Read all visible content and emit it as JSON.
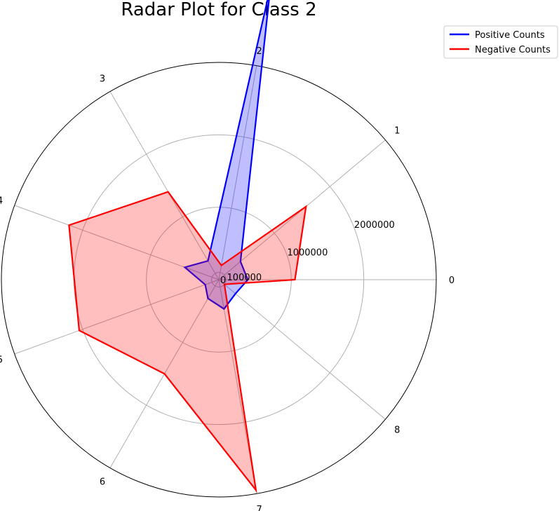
{
  "chart_data": {
    "type": "radar",
    "title": "Radar Plot for Class 2",
    "categories": [
      "0",
      "1",
      "2",
      "3",
      "4",
      "5",
      "6",
      "7",
      "8"
    ],
    "r_ticks": [
      0,
      100000,
      1000000,
      2000000
    ],
    "r_tick_labels": [
      "0",
      "100000",
      "1000000",
      "2000000"
    ],
    "rmax": 3000000,
    "grid": true,
    "legend_position": "top-right",
    "series": [
      {
        "name": "Positive Counts",
        "color": "#0000ff",
        "fill": "#0000ff",
        "values": [
          400000,
          390000,
          4100000,
          300000,
          500000,
          200000,
          300000,
          410000,
          300000
        ]
      },
      {
        "name": "Negative Counts",
        "color": "#ff0000",
        "fill": "#ff0000",
        "values": [
          1050000,
          1570000,
          200000,
          1400000,
          2200000,
          2050000,
          1500000,
          2950000,
          100000
        ]
      }
    ]
  }
}
